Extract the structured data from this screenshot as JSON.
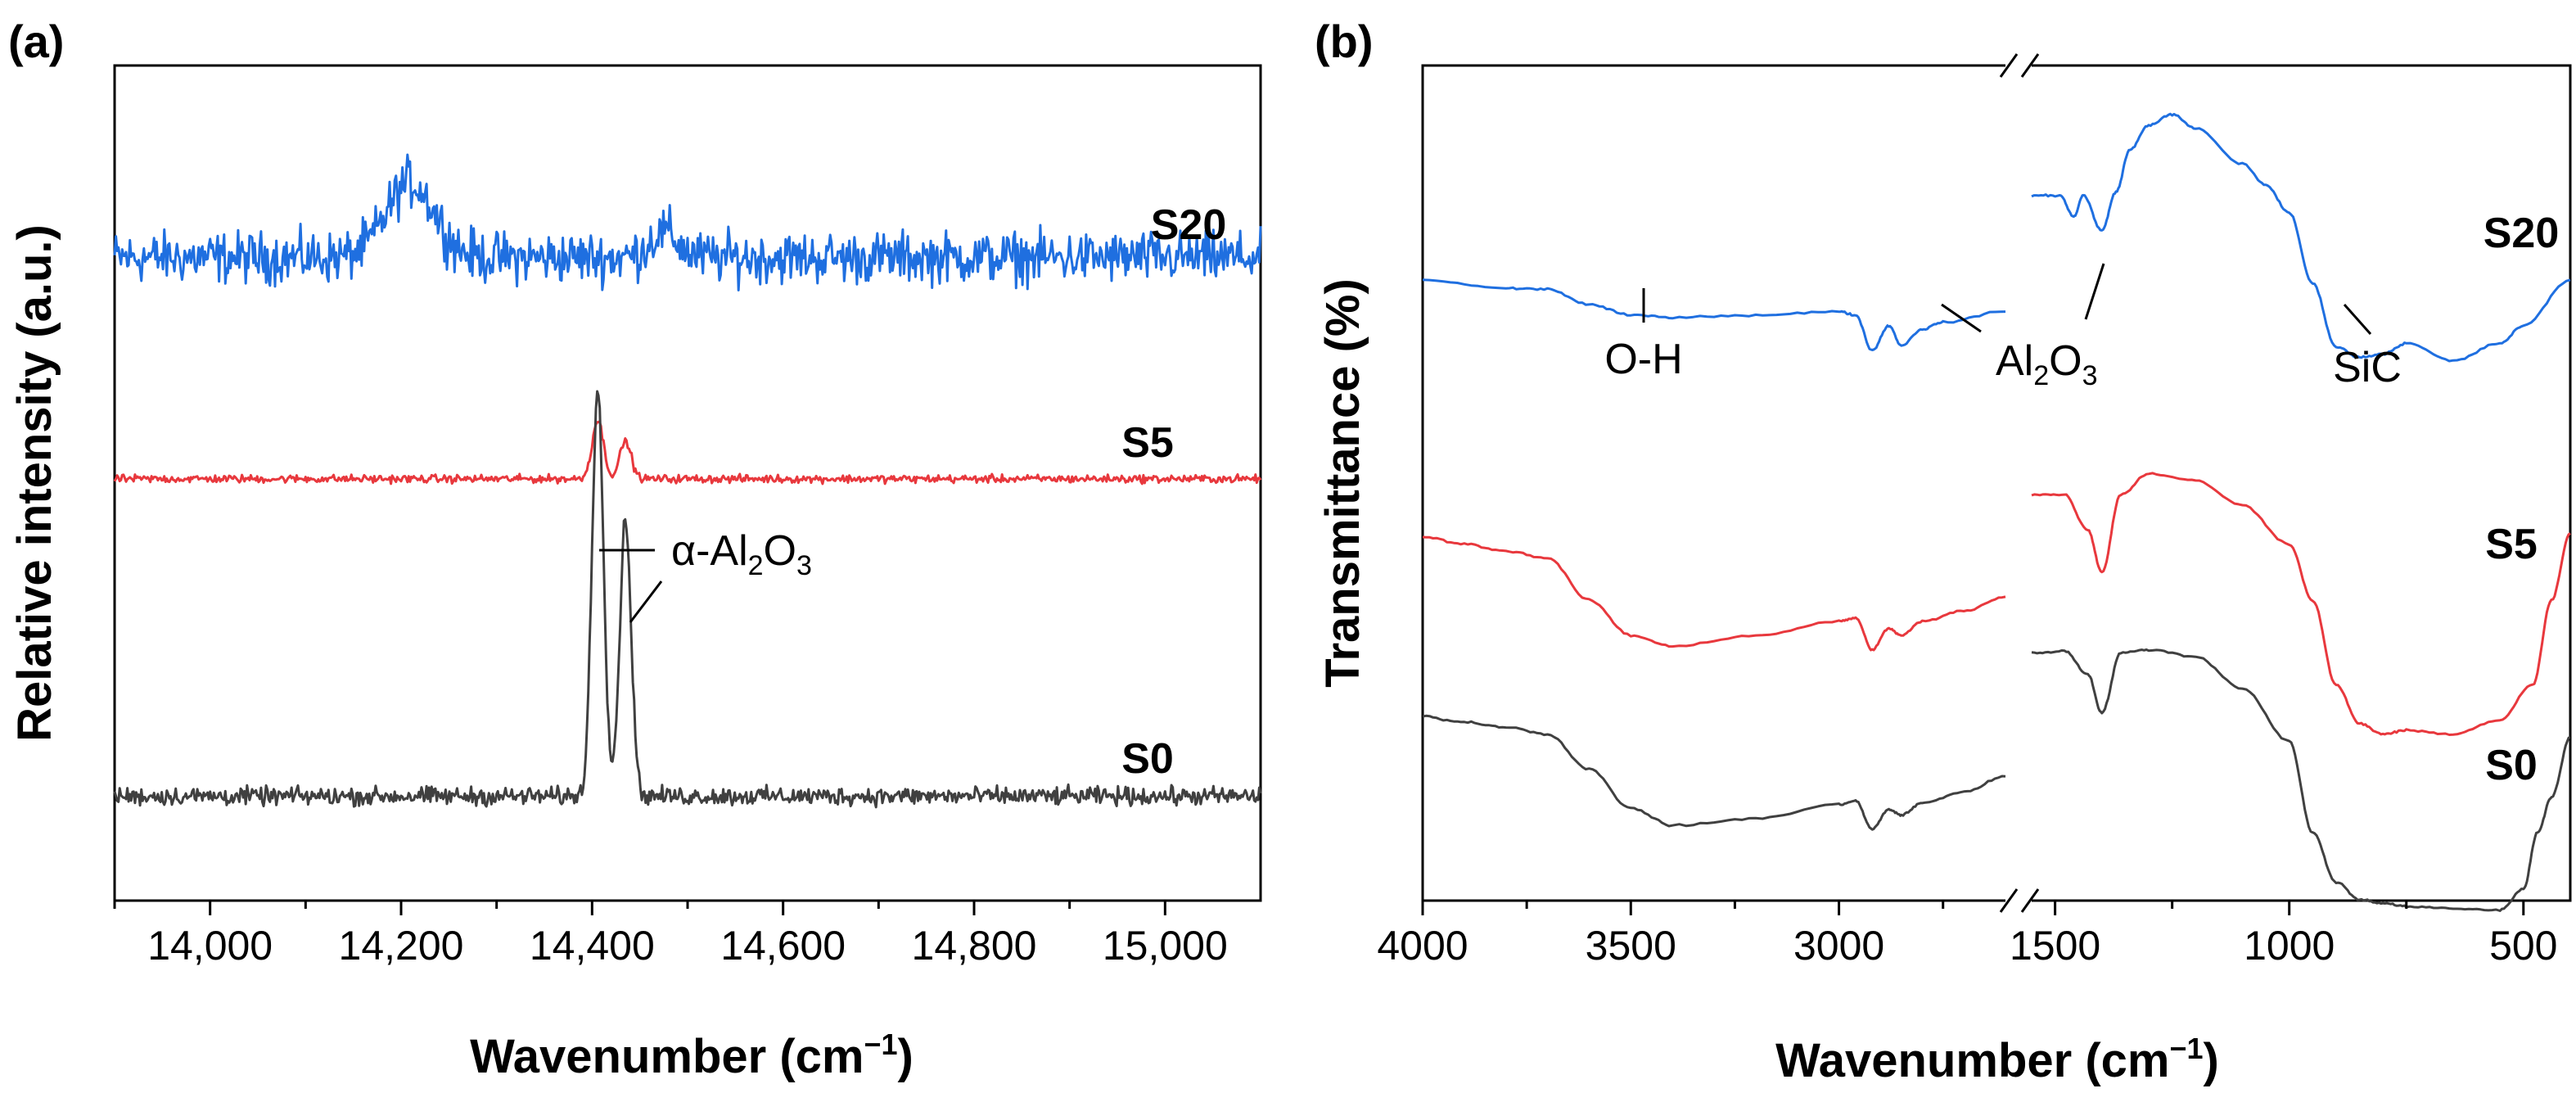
{
  "chart_data": [
    {
      "panel": "(a)",
      "type": "line",
      "xlabel": "Wavenumber (cm",
      "xlabel_sup": "−1",
      "xlabel_close": ")",
      "ylabel": "Relative intensity (a.u.)",
      "xlim": [
        13900,
        15100
      ],
      "xticks": [
        14000,
        14200,
        14400,
        14600,
        14800,
        15000
      ],
      "xtick_labels": [
        "14,000",
        "14,200",
        "14,400",
        "14,600",
        "14,800",
        "15,000"
      ],
      "series": [
        {
          "name": "S20",
          "color": "#1f6fe0",
          "baseline": 0.77,
          "noise": 0.045,
          "peaks": [
            {
              "x": 14210,
              "height": 0.09,
              "width": 25
            },
            {
              "x": 14475,
              "height": 0.03,
              "width": 15
            }
          ]
        },
        {
          "name": "S5",
          "color": "#e8383d",
          "baseline": 0.505,
          "noise": 0.007,
          "peaks": [
            {
              "x": 14406,
              "height": 0.07,
              "width": 6
            },
            {
              "x": 14435,
              "height": 0.045,
              "width": 6
            }
          ]
        },
        {
          "name": "S0",
          "color": "#404040",
          "baseline": 0.125,
          "noise": 0.016,
          "peaks": [
            {
              "x": 14406,
              "height": 0.49,
              "width": 6
            },
            {
              "x": 14435,
              "height": 0.33,
              "width": 6
            }
          ]
        }
      ],
      "annotation": {
        "text": "α-Al",
        "sub1": "2",
        "mid": "O",
        "sub2": "3"
      }
    },
    {
      "panel": "(b)",
      "type": "line",
      "xlabel": "Wavenumber (cm",
      "xlabel_sup": "−1",
      "xlabel_close": ")",
      "ylabel": "Transmittance (%)",
      "x_segments": [
        [
          4000,
          2600
        ],
        [
          1550,
          400
        ]
      ],
      "xticks": [
        4000,
        3500,
        3000,
        1500,
        1000,
        500
      ],
      "xtick_labels": [
        "4000",
        "3500",
        "3000",
        "1500",
        "1000",
        "500"
      ],
      "series": [
        {
          "name": "S20",
          "color": "#1f6fe0",
          "offset": 0.0,
          "points": [
            [
              4000,
              0.835
            ],
            [
              3800,
              0.823
            ],
            [
              3700,
              0.822
            ],
            [
              3600,
              0.8
            ],
            [
              3500,
              0.785
            ],
            [
              3400,
              0.782
            ],
            [
              3200,
              0.785
            ],
            [
              3000,
              0.79
            ],
            [
              2960,
              0.785
            ],
            [
              2920,
              0.735
            ],
            [
              2880,
              0.77
            ],
            [
              2850,
              0.742
            ],
            [
              2800,
              0.765
            ],
            [
              2750,
              0.775
            ],
            [
              2600,
              0.79
            ],
            [
              1550,
              0.955
            ],
            [
              1490,
              0.955
            ],
            [
              1460,
              0.925
            ],
            [
              1440,
              0.955
            ],
            [
              1400,
              0.905
            ],
            [
              1370,
              0.96
            ],
            [
              1340,
              1.02
            ],
            [
              1300,
              1.055
            ],
            [
              1250,
              1.07
            ],
            [
              1200,
              1.05
            ],
            [
              1100,
              1.0
            ],
            [
              1050,
              0.97
            ],
            [
              1000,
              0.93
            ],
            [
              950,
              0.83
            ],
            [
              900,
              0.74
            ],
            [
              850,
              0.725
            ],
            [
              800,
              0.73
            ],
            [
              750,
              0.745
            ],
            [
              650,
              0.72
            ],
            [
              550,
              0.745
            ],
            [
              500,
              0.77
            ],
            [
              400,
              0.835
            ]
          ]
        },
        {
          "name": "S5",
          "color": "#e8383d",
          "offset": 0.0,
          "points": [
            [
              4000,
              0.47
            ],
            [
              3900,
              0.46
            ],
            [
              3800,
              0.45
            ],
            [
              3700,
              0.44
            ],
            [
              3600,
              0.38
            ],
            [
              3500,
              0.33
            ],
            [
              3400,
              0.315
            ],
            [
              3200,
              0.33
            ],
            [
              3000,
              0.35
            ],
            [
              2960,
              0.355
            ],
            [
              2920,
              0.31
            ],
            [
              2880,
              0.34
            ],
            [
              2850,
              0.33
            ],
            [
              2800,
              0.35
            ],
            [
              2700,
              0.365
            ],
            [
              2600,
              0.385
            ],
            [
              1550,
              0.53
            ],
            [
              1480,
              0.53
            ],
            [
              1430,
              0.48
            ],
            [
              1400,
              0.42
            ],
            [
              1360,
              0.53
            ],
            [
              1300,
              0.56
            ],
            [
              1200,
              0.55
            ],
            [
              1100,
              0.515
            ],
            [
              1000,
              0.46
            ],
            [
              950,
              0.38
            ],
            [
              900,
              0.26
            ],
            [
              850,
              0.205
            ],
            [
              800,
              0.19
            ],
            [
              750,
              0.195
            ],
            [
              650,
              0.19
            ],
            [
              550,
              0.21
            ],
            [
              480,
              0.26
            ],
            [
              440,
              0.38
            ],
            [
              400,
              0.475
            ]
          ]
        },
        {
          "name": "S0",
          "color": "#404040",
          "offset": 0.0,
          "points": [
            [
              4000,
              0.215
            ],
            [
              3900,
              0.207
            ],
            [
              3800,
              0.2
            ],
            [
              3700,
              0.19
            ],
            [
              3600,
              0.14
            ],
            [
              3500,
              0.085
            ],
            [
              3400,
              0.06
            ],
            [
              3200,
              0.07
            ],
            [
              3000,
              0.09
            ],
            [
              2960,
              0.095
            ],
            [
              2920,
              0.055
            ],
            [
              2880,
              0.083
            ],
            [
              2850,
              0.075
            ],
            [
              2800,
              0.092
            ],
            [
              2700,
              0.108
            ],
            [
              2600,
              0.13
            ],
            [
              1550,
              0.305
            ],
            [
              1480,
              0.308
            ],
            [
              1430,
              0.275
            ],
            [
              1400,
              0.22
            ],
            [
              1360,
              0.305
            ],
            [
              1300,
              0.31
            ],
            [
              1200,
              0.3
            ],
            [
              1100,
              0.255
            ],
            [
              1000,
              0.18
            ],
            [
              950,
              0.05
            ],
            [
              900,
              -0.02
            ],
            [
              850,
              -0.045
            ],
            [
              800,
              -0.05
            ],
            [
              750,
              -0.055
            ],
            [
              650,
              -0.058
            ],
            [
              550,
              -0.06
            ],
            [
              500,
              -0.03
            ],
            [
              470,
              0.05
            ],
            [
              440,
              0.1
            ],
            [
              400,
              0.185
            ]
          ]
        }
      ],
      "annotations": [
        {
          "key": "oh",
          "text": "O-H"
        },
        {
          "key": "al2o3",
          "text": "Al",
          "sub1": "2",
          "mid": "O",
          "sub2": "3"
        },
        {
          "key": "sic",
          "text": "SiC"
        }
      ]
    }
  ]
}
